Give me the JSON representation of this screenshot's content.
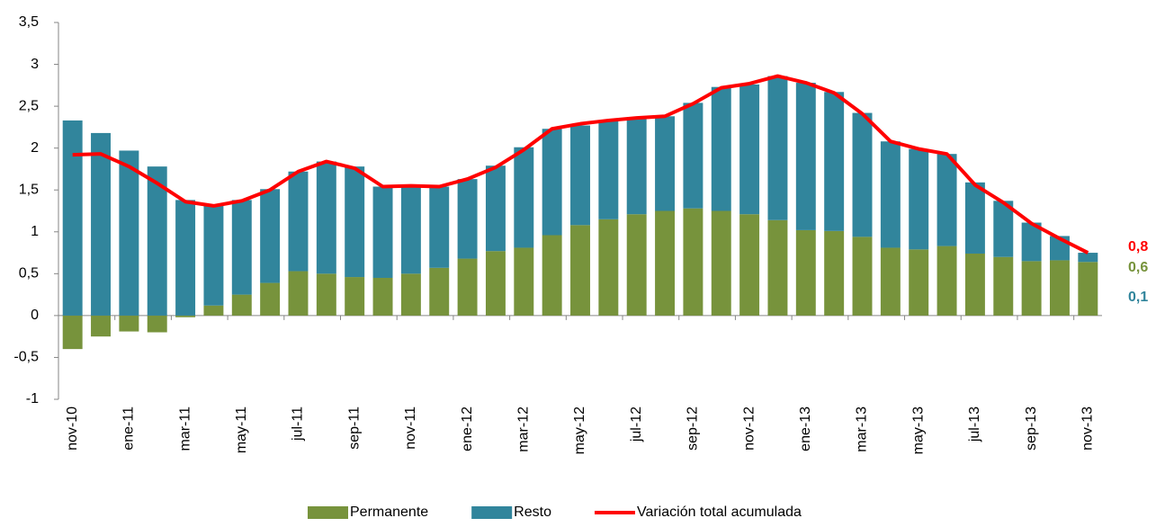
{
  "chart_data": {
    "type": "bar",
    "stacked": true,
    "categories": [
      "nov-10",
      null,
      "ene-11",
      null,
      "mar-11",
      null,
      "may-11",
      null,
      "jul-11",
      null,
      "sep-11",
      null,
      "nov-11",
      null,
      "ene-12",
      null,
      "mar-12",
      null,
      "may-12",
      null,
      "jul-12",
      null,
      "sep-12",
      null,
      "nov-12",
      null,
      "ene-13",
      null,
      "mar-13",
      null,
      "may-13",
      null,
      "jul-13",
      null,
      "sep-13",
      null,
      "nov-13"
    ],
    "series": [
      {
        "name": "Permanente",
        "type": "bar",
        "color": "#77933c",
        "values": [
          -0.4,
          -0.25,
          -0.19,
          -0.2,
          -0.02,
          0.12,
          0.25,
          0.39,
          0.53,
          0.5,
          0.46,
          0.45,
          0.5,
          0.57,
          0.68,
          0.77,
          0.81,
          0.96,
          1.08,
          1.15,
          1.21,
          1.25,
          1.28,
          1.25,
          1.21,
          1.14,
          1.02,
          1.01,
          0.94,
          0.81,
          0.79,
          0.83,
          0.74,
          0.7,
          0.65,
          0.66,
          0.64
        ],
        "value_labels": [
          null,
          null,
          null,
          null,
          null,
          null,
          null,
          null,
          null,
          null,
          null,
          null,
          null,
          null,
          null,
          null,
          null,
          null,
          null,
          null,
          null,
          null,
          null,
          null,
          null,
          null,
          null,
          null,
          null,
          null,
          null,
          null,
          null,
          null,
          null,
          null,
          "0,6"
        ]
      },
      {
        "name": "Resto",
        "type": "bar",
        "color": "#31859c",
        "values": [
          2.33,
          2.18,
          1.97,
          1.78,
          1.38,
          1.2,
          1.13,
          1.12,
          1.19,
          1.34,
          1.32,
          1.09,
          1.05,
          0.97,
          0.95,
          1.02,
          1.2,
          1.27,
          1.19,
          1.17,
          1.14,
          1.13,
          1.26,
          1.48,
          1.55,
          1.72,
          1.76,
          1.66,
          1.48,
          1.27,
          1.2,
          1.1,
          0.85,
          0.67,
          0.46,
          0.29,
          0.11
        ],
        "value_labels": [
          null,
          null,
          null,
          null,
          null,
          null,
          null,
          null,
          null,
          null,
          null,
          null,
          null,
          null,
          null,
          null,
          null,
          null,
          null,
          null,
          null,
          null,
          null,
          null,
          null,
          null,
          null,
          null,
          null,
          null,
          null,
          null,
          null,
          null,
          null,
          null,
          "0,1"
        ]
      },
      {
        "name": "Variación total acumulada",
        "type": "line",
        "color": "#ff0000",
        "values": [
          1.92,
          1.93,
          1.78,
          1.58,
          1.36,
          1.31,
          1.37,
          1.5,
          1.72,
          1.84,
          1.76,
          1.54,
          1.55,
          1.54,
          1.63,
          1.77,
          1.98,
          2.23,
          2.29,
          2.33,
          2.36,
          2.38,
          2.53,
          2.72,
          2.77,
          2.86,
          2.78,
          2.66,
          2.41,
          2.08,
          1.99,
          1.93,
          1.56,
          1.35,
          1.1,
          0.92,
          0.75
        ],
        "value_labels": [
          null,
          null,
          null,
          null,
          null,
          null,
          null,
          null,
          null,
          null,
          null,
          null,
          null,
          null,
          null,
          null,
          null,
          null,
          null,
          null,
          null,
          null,
          null,
          null,
          null,
          null,
          null,
          null,
          null,
          null,
          null,
          null,
          null,
          null,
          null,
          null,
          "0,8"
        ]
      }
    ],
    "ylim": [
      -1,
      3.5
    ],
    "yticks": [
      -1,
      {
        "value": -0.5,
        "label": "-0,5"
      },
      0,
      {
        "value": 0.5,
        "label": "0,5"
      },
      1,
      {
        "value": 1.5,
        "label": "1,5"
      },
      2,
      {
        "value": 2.5,
        "label": "2,5"
      },
      3,
      {
        "value": 3.5,
        "label": "3,5"
      }
    ],
    "grid": false,
    "legend": "bottom"
  }
}
